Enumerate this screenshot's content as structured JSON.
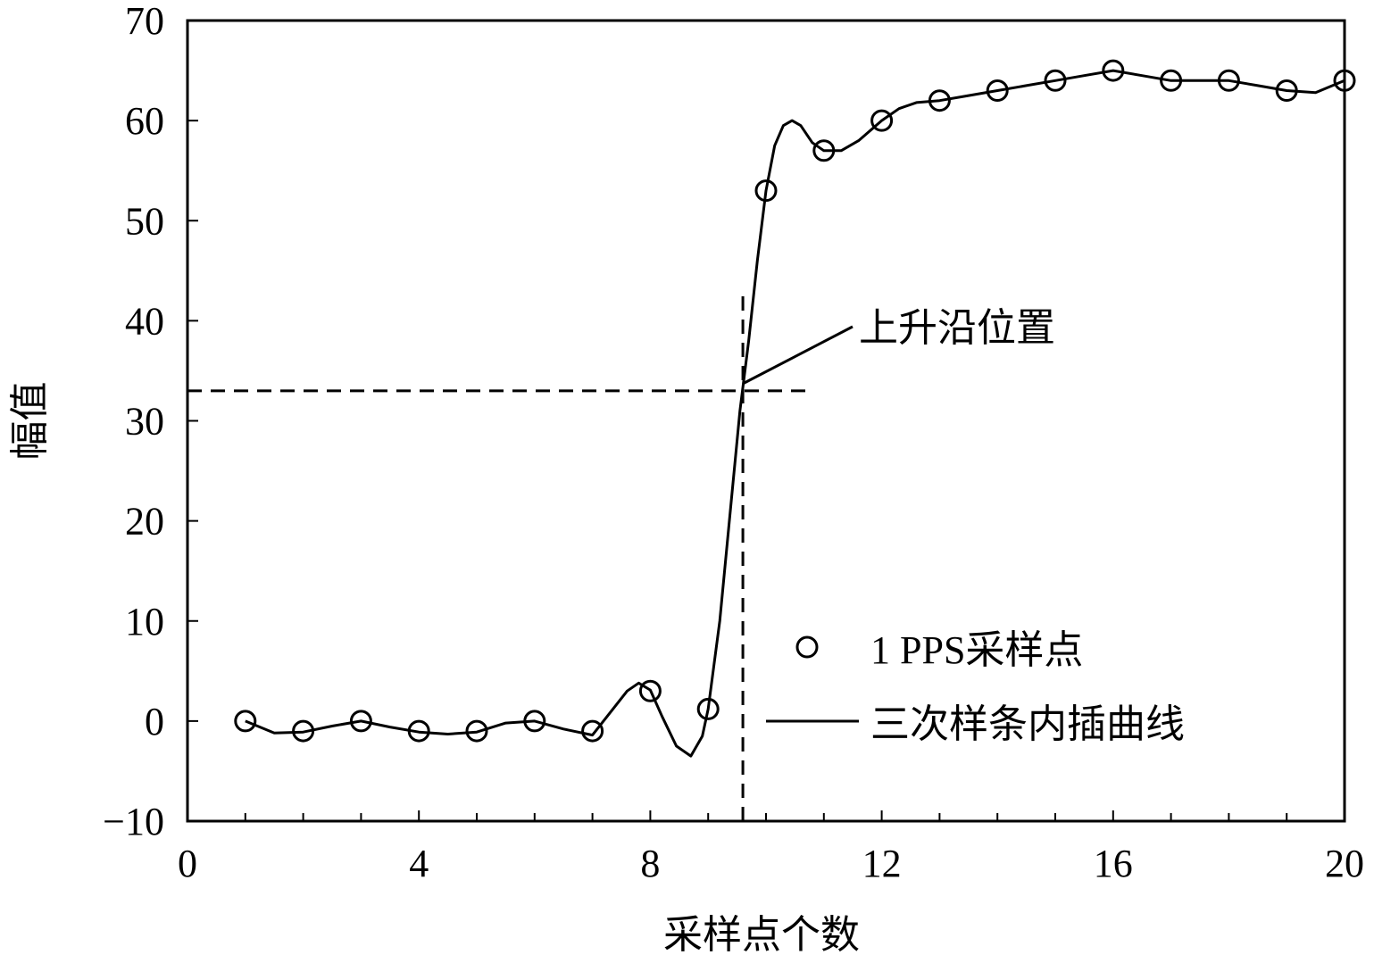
{
  "chart_data": {
    "type": "line",
    "xlabel": "采样点个数",
    "ylabel": "幅值",
    "xlim": [
      0,
      20
    ],
    "ylim": [
      -10,
      70
    ],
    "xticks": [
      0,
      4,
      8,
      12,
      16,
      20
    ],
    "xtick_labels": [
      "0",
      "4",
      "8",
      "12",
      "16",
      "20"
    ],
    "yticks": [
      -10,
      0,
      10,
      20,
      30,
      40,
      50,
      60,
      70
    ],
    "ytick_labels": [
      "−10",
      "0",
      "10",
      "20",
      "30",
      "40",
      "50",
      "60",
      "70"
    ],
    "grid": false,
    "legend_position": "bottom-right",
    "series": [
      {
        "name": "1 PPS采样点",
        "style": "markers",
        "x": [
          1,
          2,
          3,
          4,
          5,
          6,
          7,
          8,
          9,
          10,
          11,
          12,
          13,
          14,
          15,
          16,
          17,
          18,
          19,
          20
        ],
        "y": [
          0,
          -1,
          0,
          -1,
          -1,
          0,
          -1,
          3,
          1.2,
          53,
          57,
          60,
          62,
          63,
          64,
          65,
          64,
          64,
          63,
          64
        ]
      },
      {
        "name": "三次样条内插曲线",
        "style": "line",
        "x": [
          1,
          1.5,
          2,
          2.5,
          3,
          3.5,
          4,
          4.5,
          5,
          5.5,
          6,
          6.5,
          7,
          7.3,
          7.6,
          7.8,
          8,
          8.2,
          8.45,
          8.7,
          8.9,
          9,
          9.2,
          9.4,
          9.55,
          9.7,
          9.85,
          10,
          10.15,
          10.3,
          10.45,
          10.6,
          10.8,
          11,
          11.3,
          11.6,
          12,
          12.3,
          12.6,
          13,
          13.5,
          14,
          14.5,
          15,
          15.5,
          16,
          16.5,
          17,
          17.5,
          18,
          18.5,
          19,
          19.5,
          20
        ],
        "y": [
          0,
          -1.2,
          -1.1,
          -0.5,
          0,
          -0.6,
          -1.1,
          -1.3,
          -1.1,
          -0.2,
          0,
          -0.8,
          -1.4,
          0.8,
          3,
          3.8,
          3.1,
          0.5,
          -2.5,
          -3.5,
          -1.5,
          1.2,
          10,
          22,
          31,
          38,
          46,
          53,
          57.5,
          59.5,
          60,
          59.5,
          57.8,
          57,
          57,
          58,
          60,
          61.2,
          61.8,
          62,
          62.5,
          63,
          63.5,
          64,
          64.5,
          65,
          64.5,
          64,
          64,
          64,
          63.5,
          63,
          62.8,
          64
        ]
      }
    ],
    "annotations": [
      {
        "text": "上升沿位置",
        "x": 9.6,
        "y": 33
      }
    ],
    "reference_lines": [
      {
        "orientation": "horizontal",
        "y": 33,
        "x_range": [
          0,
          10.7
        ],
        "style": "dashed"
      },
      {
        "orientation": "vertical",
        "x": 9.6,
        "y_range": [
          -10,
          43
        ],
        "style": "dashed"
      }
    ]
  }
}
